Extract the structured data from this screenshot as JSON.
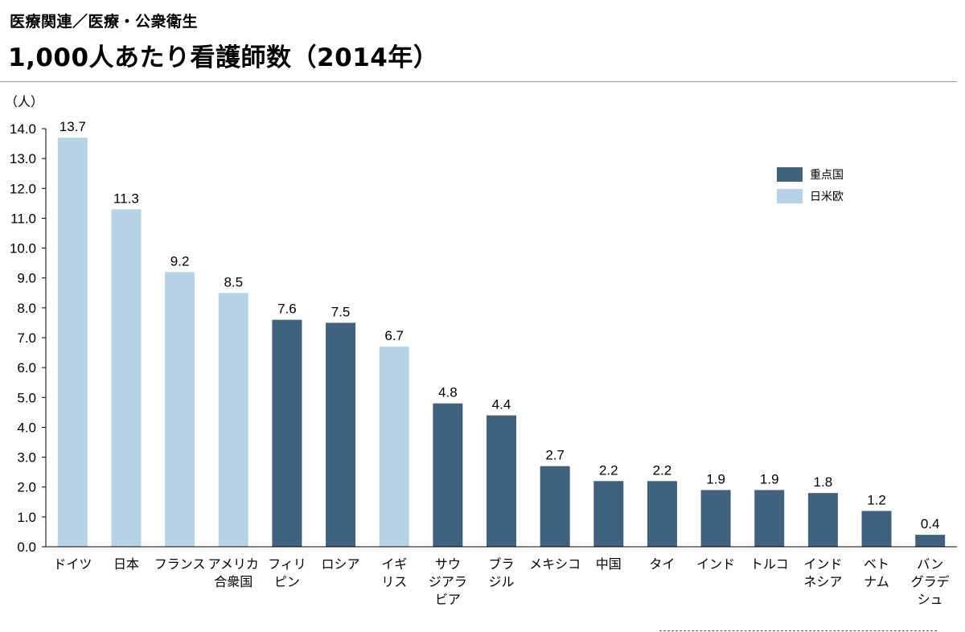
{
  "header": {
    "category": "医療関連／医療・公衆衛生",
    "title": "1,000人あたり看護師数（2014年）"
  },
  "chart_data": {
    "type": "bar",
    "title": "1,000人あたり看護師数（2014年）",
    "ylabel": "（人）",
    "xlabel": "",
    "ylim": [
      0,
      14
    ],
    "ytick_step": 1,
    "ytick_labels": [
      "0.0",
      "1.0",
      "2.0",
      "3.0",
      "4.0",
      "5.0",
      "6.0",
      "7.0",
      "8.0",
      "9.0",
      "10.0",
      "11.0",
      "12.0",
      "13.0",
      "14.0"
    ],
    "grid": false,
    "legend_position": "top-right",
    "legend": [
      {
        "key": "focus",
        "label": "重点国",
        "color": "#41627e"
      },
      {
        "key": "japan_us_eu",
        "label": "日米欧",
        "color": "#b5d3e4"
      }
    ],
    "categories": [
      {
        "label": "ドイツ",
        "lines": [
          "ドイツ"
        ],
        "value": 13.7,
        "group": "japan_us_eu"
      },
      {
        "label": "日本",
        "lines": [
          "日本"
        ],
        "value": 11.3,
        "group": "japan_us_eu"
      },
      {
        "label": "フランス",
        "lines": [
          "フランス"
        ],
        "value": 9.2,
        "group": "japan_us_eu"
      },
      {
        "label": "アメリカ合衆国",
        "lines": [
          "アメリカ",
          "合衆国"
        ],
        "value": 8.5,
        "group": "japan_us_eu"
      },
      {
        "label": "フィリピン",
        "lines": [
          "フィリ",
          "ピン"
        ],
        "value": 7.6,
        "group": "focus"
      },
      {
        "label": "ロシア",
        "lines": [
          "ロシア"
        ],
        "value": 7.5,
        "group": "focus"
      },
      {
        "label": "イギリス",
        "lines": [
          "イギ",
          "リス"
        ],
        "value": 6.7,
        "group": "japan_us_eu"
      },
      {
        "label": "サウジアラビア",
        "lines": [
          "サウ",
          "ジアラ",
          "ビア"
        ],
        "value": 4.8,
        "group": "focus"
      },
      {
        "label": "ブラジル",
        "lines": [
          "ブラ",
          "ジル"
        ],
        "value": 4.4,
        "group": "focus"
      },
      {
        "label": "メキシコ",
        "lines": [
          "メキシコ"
        ],
        "value": 2.7,
        "group": "focus"
      },
      {
        "label": "中国",
        "lines": [
          "中国"
        ],
        "value": 2.2,
        "group": "focus"
      },
      {
        "label": "タイ",
        "lines": [
          "タイ"
        ],
        "value": 2.2,
        "group": "focus"
      },
      {
        "label": "インド",
        "lines": [
          "インド"
        ],
        "value": 1.9,
        "group": "focus"
      },
      {
        "label": "トルコ",
        "lines": [
          "トルコ"
        ],
        "value": 1.9,
        "group": "focus"
      },
      {
        "label": "インドネシア",
        "lines": [
          "インド",
          "ネシア"
        ],
        "value": 1.8,
        "group": "focus"
      },
      {
        "label": "ベトナム",
        "lines": [
          "ベト",
          "ナム"
        ],
        "value": 1.2,
        "group": "focus"
      },
      {
        "label": "バングラデシュ",
        "lines": [
          "バン",
          "グラデ",
          "シュ"
        ],
        "value": 0.4,
        "group": "focus"
      }
    ]
  }
}
